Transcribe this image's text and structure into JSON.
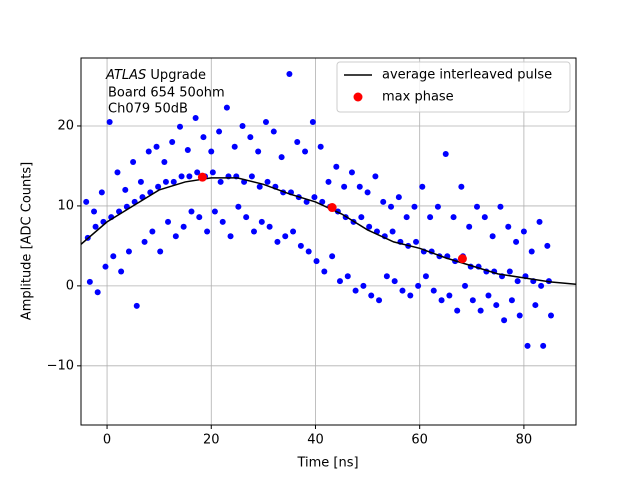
{
  "chart_data": {
    "type": "scatter",
    "xlabel": "Time [ns]",
    "ylabel": "Amplitude [ADC Counts]",
    "annotation": {
      "italic": "ATLAS",
      "text": "Upgrade",
      "lines": [
        "Board 654 50ohm",
        "Ch079 50dB"
      ]
    },
    "xlim": [
      -5,
      90
    ],
    "ylim": [
      -17.4,
      28.5
    ],
    "xticks": [
      0,
      20,
      40,
      60,
      80
    ],
    "yticks": [
      {
        "value": -10,
        "label": "−10"
      },
      0,
      10,
      20
    ],
    "grid": true,
    "legend": "upper right",
    "points": {
      "color": "#0000ff",
      "x": [
        -4,
        -2.5,
        -1,
        0.5,
        2,
        3.5,
        5,
        6.5,
        8,
        9.5,
        11,
        12.5,
        14,
        15.5,
        17,
        18.5,
        20,
        21.5,
        23,
        24.5,
        26,
        27.5,
        29,
        30.5,
        32,
        33.5,
        35,
        36.5,
        38,
        39.5,
        41,
        42.5,
        44,
        45.5,
        47,
        48.5,
        50,
        51.5,
        53,
        54.5,
        56,
        57.5,
        59,
        60.5,
        62,
        63.5,
        65,
        66.5,
        68,
        69.5,
        71,
        72.5,
        74,
        75.5,
        77,
        78.5,
        80,
        81.5,
        83,
        84.5,
        -3.3,
        -1.8,
        -0.3,
        1.2,
        2.7,
        4.2,
        5.7,
        7.2,
        8.7,
        10.2,
        11.7,
        13.2,
        14.7,
        16.2,
        17.7,
        19.2,
        20.7,
        22.2,
        23.7,
        25.2,
        26.7,
        28.2,
        29.7,
        31.2,
        32.7,
        34.2,
        35.7,
        37.2,
        38.7,
        40.2,
        41.7,
        43.2,
        44.7,
        46.2,
        47.7,
        49.2,
        50.7,
        52.2,
        53.7,
        55.2,
        56.7,
        58.2,
        59.7,
        61.2,
        62.7,
        64.2,
        65.7,
        67.2,
        68.7,
        70.2,
        71.7,
        73.2,
        74.7,
        76.2,
        77.7,
        79.2,
        80.7,
        82.2,
        83.7,
        85.2,
        -3.7,
        -2.2,
        -0.7,
        0.8,
        2.3,
        3.8,
        5.3,
        6.8,
        8.3,
        9.8,
        11.3,
        12.8,
        14.3,
        15.8,
        17.3,
        18.8,
        20.3,
        21.8,
        23.3,
        24.8,
        26.3,
        27.8,
        29.3,
        30.8,
        32.3,
        33.8,
        35.3,
        36.8,
        38.3,
        39.8,
        41.3,
        42.8,
        44.3,
        45.8,
        47.3,
        48.8,
        50.3,
        51.8,
        53.3,
        54.8,
        56.3,
        57.8,
        59.3,
        60.8,
        62.3,
        63.8,
        65.3,
        66.8,
        68.3,
        69.8,
        71.3,
        72.8,
        74.3,
        75.8,
        77.3,
        78.8,
        80.3,
        81.8,
        83.3,
        84.8
      ],
      "y": [
        10.5,
        9.3,
        11.7,
        20.5,
        14.2,
        12,
        15.5,
        13,
        16.8,
        17.4,
        15.5,
        18,
        19.9,
        17,
        21,
        18.6,
        16.8,
        19.3,
        22.3,
        17.4,
        20,
        18.6,
        16.8,
        20.5,
        19.3,
        16.1,
        26.5,
        18,
        16.8,
        20.5,
        17.4,
        13,
        14.9,
        12.4,
        14.2,
        12.4,
        11.7,
        13.7,
        10.5,
        9.9,
        11.1,
        8.6,
        9.9,
        12.4,
        8.6,
        9.9,
        16.5,
        8.6,
        12.4,
        7.4,
        9.9,
        8.6,
        6.2,
        9.9,
        7.4,
        5.5,
        6.8,
        4.3,
        8.0,
        5.0,
        0.5,
        -0.8,
        2.4,
        3.7,
        1.8,
        4.3,
        -2.5,
        5.5,
        6.8,
        4.3,
        8,
        6.2,
        7.4,
        9.3,
        8.6,
        6.8,
        9.3,
        8,
        6.2,
        9.9,
        8.6,
        6.8,
        8,
        7.4,
        5.5,
        6.2,
        6.8,
        5,
        4.3,
        3.1,
        1.8,
        3.7,
        0.6,
        1.2,
        -0.6,
        0,
        -1.2,
        -1.8,
        1.2,
        0.6,
        -0.6,
        -1.2,
        0,
        1.2,
        -0.6,
        -1.8,
        -1.2,
        -3.1,
        0,
        -1.8,
        -3.1,
        -1.2,
        -2.4,
        -4.3,
        -1.8,
        -3.7,
        -7.5,
        -2.4,
        -7.5,
        -3.7,
        6,
        7.4,
        8,
        8.6,
        9.3,
        9.9,
        10.5,
        11.1,
        11.7,
        12.4,
        13,
        13,
        13.7,
        13.7,
        14.2,
        13.7,
        14.2,
        13,
        13.7,
        13.7,
        13,
        13.7,
        12.4,
        13,
        12.4,
        11.7,
        11.7,
        11.1,
        10.5,
        11.1,
        10.5,
        9.9,
        9.3,
        8.6,
        8,
        8.6,
        7.4,
        6.8,
        6.2,
        6.8,
        5.5,
        5,
        5.5,
        4.3,
        4.3,
        3.7,
        3.7,
        3.1,
        3.7,
        2.4,
        2.4,
        1.8,
        1.8,
        1.2,
        1.8,
        0.6,
        1.2,
        0.6,
        0,
        0.6
      ]
    },
    "series": [
      {
        "name": "average interleaved pulse",
        "color": "#000000",
        "kind": "line",
        "x": [
          -5,
          0,
          5,
          10,
          15,
          20,
          25,
          30,
          35,
          40,
          45,
          50,
          55,
          60,
          65,
          70,
          75,
          80,
          85,
          90
        ],
        "values": [
          5.2,
          8,
          10,
          12,
          13,
          13.5,
          13.5,
          12.7,
          11.5,
          10.5,
          9,
          7,
          5.5,
          4.7,
          3.5,
          2.5,
          1.5,
          1,
          0.5,
          0.2
        ]
      },
      {
        "name": "max phase",
        "color": "#ff0000",
        "kind": "marker",
        "x": [
          18.3,
          43.2,
          68.2
        ],
        "values": [
          13.6,
          9.8,
          3.4
        ]
      }
    ]
  }
}
